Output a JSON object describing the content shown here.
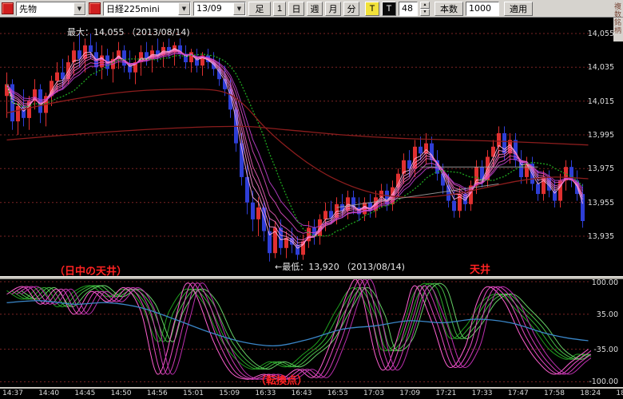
{
  "toolbar": {
    "instrument_select": "先物",
    "symbol_select": "日経225mini",
    "month_select": "13/09",
    "bar_button": "足",
    "period_buttons": [
      "1",
      "日",
      "週",
      "月",
      "分"
    ],
    "tick_button": "T",
    "tick_black_button": "T",
    "interval_value": "48",
    "bars_label": "本数",
    "bars_count": "1000",
    "apply_button": "適用",
    "vertical_label": "複数銘柄"
  },
  "icons": {
    "dropdown_arrow": "▼",
    "spinner_up": "▲",
    "spinner_down": "▼"
  },
  "main_chart": {
    "y_axis": [
      {
        "label": "14,055",
        "value": 14055
      },
      {
        "label": "14,035",
        "value": 14035
      },
      {
        "label": "14,015",
        "value": 14015
      },
      {
        "label": "13,995",
        "value": 13995
      },
      {
        "label": "13,975",
        "value": 13975
      },
      {
        "label": "13,955",
        "value": 13955
      },
      {
        "label": "13,935",
        "value": 13935
      }
    ],
    "annotations": {
      "max_label": "最大：14,055 （2013/08/14)",
      "min_label": "←最低：13,920 （2013/08/14)",
      "ceiling_left": "（日中の天井）",
      "ceiling_right": "天井",
      "turning_point": "（転換点）"
    }
  },
  "oscillator": {
    "y_axis": [
      {
        "label": "100.00",
        "value": 100
      },
      {
        "label": "35.00",
        "value": 35
      },
      {
        "label": "-35.00",
        "value": -35
      },
      {
        "label": "-100.00",
        "value": -100
      }
    ]
  },
  "x_axis_labels": [
    "14:37",
    "14:40",
    "14:45",
    "14:50",
    "14:56",
    "15:01",
    "15:09",
    "16:33",
    "16:43",
    "16:53",
    "17:03",
    "17:09",
    "17:21",
    "17:33",
    "17:47",
    "17:58",
    "18:24",
    "18"
  ],
  "chart_data": {
    "type": "candlestick",
    "title": "日経225mini 13/09",
    "price_max": {
      "value": 14055,
      "date": "2013/08/14"
    },
    "price_min": {
      "value": 13920,
      "date": "2013/08/14"
    },
    "y_range": [
      13911,
      14064
    ],
    "oscillator_range": [
      -100,
      100
    ],
    "candles_ohlc": [
      [
        14018,
        14032,
        14005,
        14025
      ],
      [
        14025,
        14028,
        13998,
        14003
      ],
      [
        14003,
        14015,
        13995,
        14012
      ],
      [
        14012,
        14022,
        14000,
        14005
      ],
      [
        14005,
        14018,
        13998,
        14015
      ],
      [
        14015,
        14028,
        14010,
        14022
      ],
      [
        14022,
        14025,
        14002,
        14008
      ],
      [
        14008,
        14020,
        14000,
        14018
      ],
      [
        14018,
        14030,
        14012,
        14027
      ],
      [
        14027,
        14038,
        14020,
        14032
      ],
      [
        14032,
        14040,
        14022,
        14028
      ],
      [
        14028,
        14042,
        14025,
        14038
      ],
      [
        14038,
        14050,
        14030,
        14045
      ],
      [
        14045,
        14055,
        14035,
        14040
      ],
      [
        14040,
        14052,
        14032,
        14048
      ],
      [
        14048,
        14055,
        14040,
        14044
      ],
      [
        14044,
        14050,
        14030,
        14035
      ],
      [
        14035,
        14048,
        14028,
        14042
      ],
      [
        14042,
        14046,
        14030,
        14034
      ],
      [
        14034,
        14044,
        14026,
        14040
      ],
      [
        14040,
        14050,
        14034,
        14045
      ],
      [
        14045,
        14048,
        14032,
        14036
      ],
      [
        14036,
        14045,
        14028,
        14032
      ],
      [
        14032,
        14042,
        14025,
        14038
      ],
      [
        14038,
        14048,
        14030,
        14044
      ],
      [
        14044,
        14050,
        14036,
        14040
      ],
      [
        14040,
        14048,
        14032,
        14045
      ],
      [
        14045,
        14052,
        14038,
        14042
      ],
      [
        14042,
        14050,
        14035,
        14047
      ],
      [
        14047,
        14052,
        14040,
        14044
      ],
      [
        14044,
        14050,
        14036,
        14048
      ],
      [
        14048,
        14052,
        14040,
        14043
      ],
      [
        14043,
        14048,
        14034,
        14038
      ],
      [
        14038,
        14046,
        14032,
        14044
      ],
      [
        14040,
        14046,
        14032,
        14036
      ],
      [
        14036,
        14044,
        14030,
        14042
      ],
      [
        14042,
        14046,
        14034,
        14038
      ],
      [
        14038,
        14044,
        14030,
        14034
      ],
      [
        14034,
        14040,
        14024,
        14028
      ],
      [
        14028,
        14036,
        14018,
        14022
      ],
      [
        14022,
        14028,
        14005,
        14010
      ],
      [
        14010,
        14015,
        13985,
        13990
      ],
      [
        13990,
        13996,
        13965,
        13970
      ],
      [
        13970,
        13978,
        13948,
        13955
      ],
      [
        13955,
        13962,
        13938,
        13945
      ],
      [
        13945,
        13958,
        13935,
        13952
      ],
      [
        13952,
        13956,
        13932,
        13938
      ],
      [
        13938,
        13946,
        13920,
        13925
      ],
      [
        13925,
        13944,
        13922,
        13940
      ],
      [
        13940,
        13945,
        13924,
        13928
      ],
      [
        13928,
        13938,
        13922,
        13934
      ],
      [
        13934,
        13940,
        13925,
        13930
      ],
      [
        13930,
        13935,
        13921,
        13924
      ],
      [
        13924,
        13936,
        13921,
        13932
      ],
      [
        13932,
        13944,
        13928,
        13940
      ],
      [
        13940,
        13945,
        13930,
        13935
      ],
      [
        13935,
        13948,
        13930,
        13945
      ],
      [
        13945,
        13955,
        13938,
        13950
      ],
      [
        13950,
        13956,
        13942,
        13946
      ],
      [
        13946,
        13958,
        13942,
        13954
      ],
      [
        13954,
        13960,
        13946,
        13950
      ],
      [
        13950,
        13962,
        13945,
        13958
      ],
      [
        13958,
        13962,
        13948,
        13952
      ],
      [
        13952,
        13958,
        13944,
        13948
      ],
      [
        13948,
        13958,
        13944,
        13955
      ],
      [
        13955,
        13960,
        13946,
        13950
      ],
      [
        13950,
        13962,
        13946,
        13958
      ],
      [
        13958,
        13966,
        13952,
        13962
      ],
      [
        13962,
        13966,
        13950,
        13954
      ],
      [
        13954,
        13968,
        13950,
        13964
      ],
      [
        13964,
        13975,
        13958,
        13972
      ],
      [
        13972,
        13984,
        13966,
        13980
      ],
      [
        13980,
        13986,
        13970,
        13975
      ],
      [
        13975,
        13992,
        13970,
        13988
      ],
      [
        13988,
        13994,
        13980,
        13984
      ],
      [
        13984,
        13996,
        13978,
        13990
      ],
      [
        13990,
        13994,
        13976,
        13980
      ],
      [
        13980,
        13986,
        13968,
        13972
      ],
      [
        13972,
        13978,
        13960,
        13965
      ],
      [
        13965,
        13972,
        13952,
        13956
      ],
      [
        13956,
        13962,
        13946,
        13950
      ],
      [
        13950,
        13964,
        13946,
        13960
      ],
      [
        13960,
        13964,
        13950,
        13954
      ],
      [
        13954,
        13968,
        13950,
        13965
      ],
      [
        13965,
        13980,
        13960,
        13976
      ],
      [
        13976,
        13980,
        13964,
        13968
      ],
      [
        13968,
        13986,
        13964,
        13982
      ],
      [
        13982,
        13992,
        13976,
        13988
      ],
      [
        13988,
        14000,
        13982,
        13996
      ],
      [
        13996,
        14000,
        13980,
        13984
      ],
      [
        13984,
        13996,
        13978,
        13992
      ],
      [
        13992,
        13996,
        13976,
        13980
      ],
      [
        13980,
        13986,
        13966,
        13970
      ],
      [
        13970,
        13982,
        13966,
        13978
      ],
      [
        13978,
        13982,
        13962,
        13966
      ],
      [
        13966,
        13974,
        13956,
        13960
      ],
      [
        13960,
        13974,
        13956,
        13970
      ],
      [
        13970,
        13974,
        13958,
        13962
      ],
      [
        13962,
        13968,
        13952,
        13956
      ],
      [
        13956,
        13972,
        13952,
        13968
      ],
      [
        13968,
        13980,
        13962,
        13976
      ],
      [
        13976,
        13980,
        13964,
        13968
      ],
      [
        13968,
        13974,
        13956,
        13960
      ],
      [
        13960,
        13966,
        13940,
        13944
      ]
    ],
    "overlays": {
      "ema_ribbon_periods": [
        3,
        4,
        5,
        6,
        8,
        10
      ],
      "green_ma_period": 12,
      "red_ma_curves": [
        {
          "name": "long-ma",
          "points": [
            [
              0,
              13992
            ],
            [
              15,
              13996
            ],
            [
              30,
              13999
            ],
            [
              42,
              14000
            ],
            [
              50,
              13998
            ],
            [
              60,
              13995
            ],
            [
              70,
              13993
            ],
            [
              80,
              13992
            ],
            [
              90,
              13991
            ],
            [
              104,
              13989
            ]
          ]
        },
        {
          "name": "mid-ma",
          "points": [
            [
              0,
              14008
            ],
            [
              10,
              14015
            ],
            [
              20,
              14020
            ],
            [
              30,
              14022
            ],
            [
              38,
              14021
            ],
            [
              42,
              14014
            ],
            [
              46,
              14000
            ],
            [
              50,
              13988
            ],
            [
              54,
              13978
            ],
            [
              58,
              13970
            ],
            [
              63,
              13963
            ],
            [
              68,
              13959
            ],
            [
              74,
              13958
            ],
            [
              80,
              13960
            ],
            [
              86,
              13964
            ],
            [
              92,
              13968
            ],
            [
              98,
              13970
            ],
            [
              104,
              13969
            ]
          ]
        }
      ],
      "trendlines": [
        {
          "from": [
            59,
            13952
          ],
          "to": [
            88,
            13966
          ]
        },
        {
          "from": [
            74,
            13976
          ],
          "to": [
            95,
            13976
          ]
        }
      ]
    },
    "oscillator_series": {
      "green": [
        [
          0,
          82
        ],
        [
          3,
          65
        ],
        [
          6,
          88
        ],
        [
          9,
          50
        ],
        [
          12,
          80
        ],
        [
          15,
          92
        ],
        [
          18,
          70
        ],
        [
          21,
          85
        ],
        [
          24,
          55
        ],
        [
          27,
          -20
        ],
        [
          29,
          40
        ],
        [
          32,
          85
        ],
        [
          35,
          60
        ],
        [
          38,
          -10
        ],
        [
          41,
          -55
        ],
        [
          44,
          -75
        ],
        [
          47,
          -60
        ],
        [
          50,
          -70
        ],
        [
          53,
          -45
        ],
        [
          56,
          -15
        ],
        [
          59,
          45
        ],
        [
          62,
          88
        ],
        [
          65,
          35
        ],
        [
          67,
          -35
        ],
        [
          70,
          -15
        ],
        [
          73,
          80
        ],
        [
          76,
          88
        ],
        [
          79,
          -10
        ],
        [
          82,
          10
        ],
        [
          85,
          60
        ],
        [
          88,
          75
        ],
        [
          91,
          45
        ],
        [
          94,
          10
        ],
        [
          97,
          -35
        ],
        [
          100,
          -55
        ],
        [
          102,
          -45
        ],
        [
          104,
          -50
        ]
      ],
      "magenta": [
        [
          0,
          75
        ],
        [
          3,
          90
        ],
        [
          6,
          55
        ],
        [
          9,
          85
        ],
        [
          12,
          35
        ],
        [
          15,
          80
        ],
        [
          18,
          60
        ],
        [
          21,
          88
        ],
        [
          24,
          40
        ],
        [
          27,
          -85
        ],
        [
          30,
          20
        ],
        [
          32,
          95
        ],
        [
          34,
          70
        ],
        [
          37,
          -20
        ],
        [
          40,
          -80
        ],
        [
          43,
          -95
        ],
        [
          46,
          -85
        ],
        [
          49,
          -95
        ],
        [
          52,
          -75
        ],
        [
          55,
          -90
        ],
        [
          58,
          -20
        ],
        [
          61,
          80
        ],
        [
          63,
          95
        ],
        [
          66,
          -50
        ],
        [
          68,
          -70
        ],
        [
          71,
          30
        ],
        [
          73,
          92
        ],
        [
          76,
          20
        ],
        [
          79,
          -70
        ],
        [
          82,
          -30
        ],
        [
          84,
          55
        ],
        [
          86,
          90
        ],
        [
          89,
          60
        ],
        [
          92,
          -10
        ],
        [
          95,
          -60
        ],
        [
          98,
          -85
        ],
        [
          101,
          -60
        ],
        [
          104,
          -35
        ]
      ],
      "blue": [
        [
          0,
          58
        ],
        [
          6,
          62
        ],
        [
          12,
          55
        ],
        [
          18,
          58
        ],
        [
          24,
          48
        ],
        [
          30,
          25
        ],
        [
          36,
          0
        ],
        [
          42,
          -20
        ],
        [
          48,
          -28
        ],
        [
          54,
          -15
        ],
        [
          60,
          5
        ],
        [
          66,
          12
        ],
        [
          72,
          22
        ],
        [
          78,
          18
        ],
        [
          84,
          25
        ],
        [
          90,
          18
        ],
        [
          96,
          -2
        ],
        [
          100,
          -12
        ],
        [
          104,
          -18
        ]
      ]
    },
    "colors": {
      "up": "#e03030",
      "down": "#2e3ed6",
      "ribbon": [
        "#ffb3e2",
        "#ff93d6",
        "#f877c8",
        "#ea5eba",
        "#d94bc0",
        "#bf3fd0"
      ],
      "green_ma": "#1fa51f",
      "red_ma": "#8c1d1d",
      "grid": "#7c2424",
      "trend": "#a8a8a8",
      "osc_green": [
        "#1e9e1e",
        "#2fae2f",
        "#48c048",
        "#66d066"
      ],
      "osc_magenta": [
        "#ff5fd2",
        "#ea4cc6",
        "#d43cba",
        "#bb2fae"
      ],
      "osc_blue": "#3a86c8",
      "annotation_red": "#ff2222",
      "text": "#e8e8e8"
    }
  }
}
